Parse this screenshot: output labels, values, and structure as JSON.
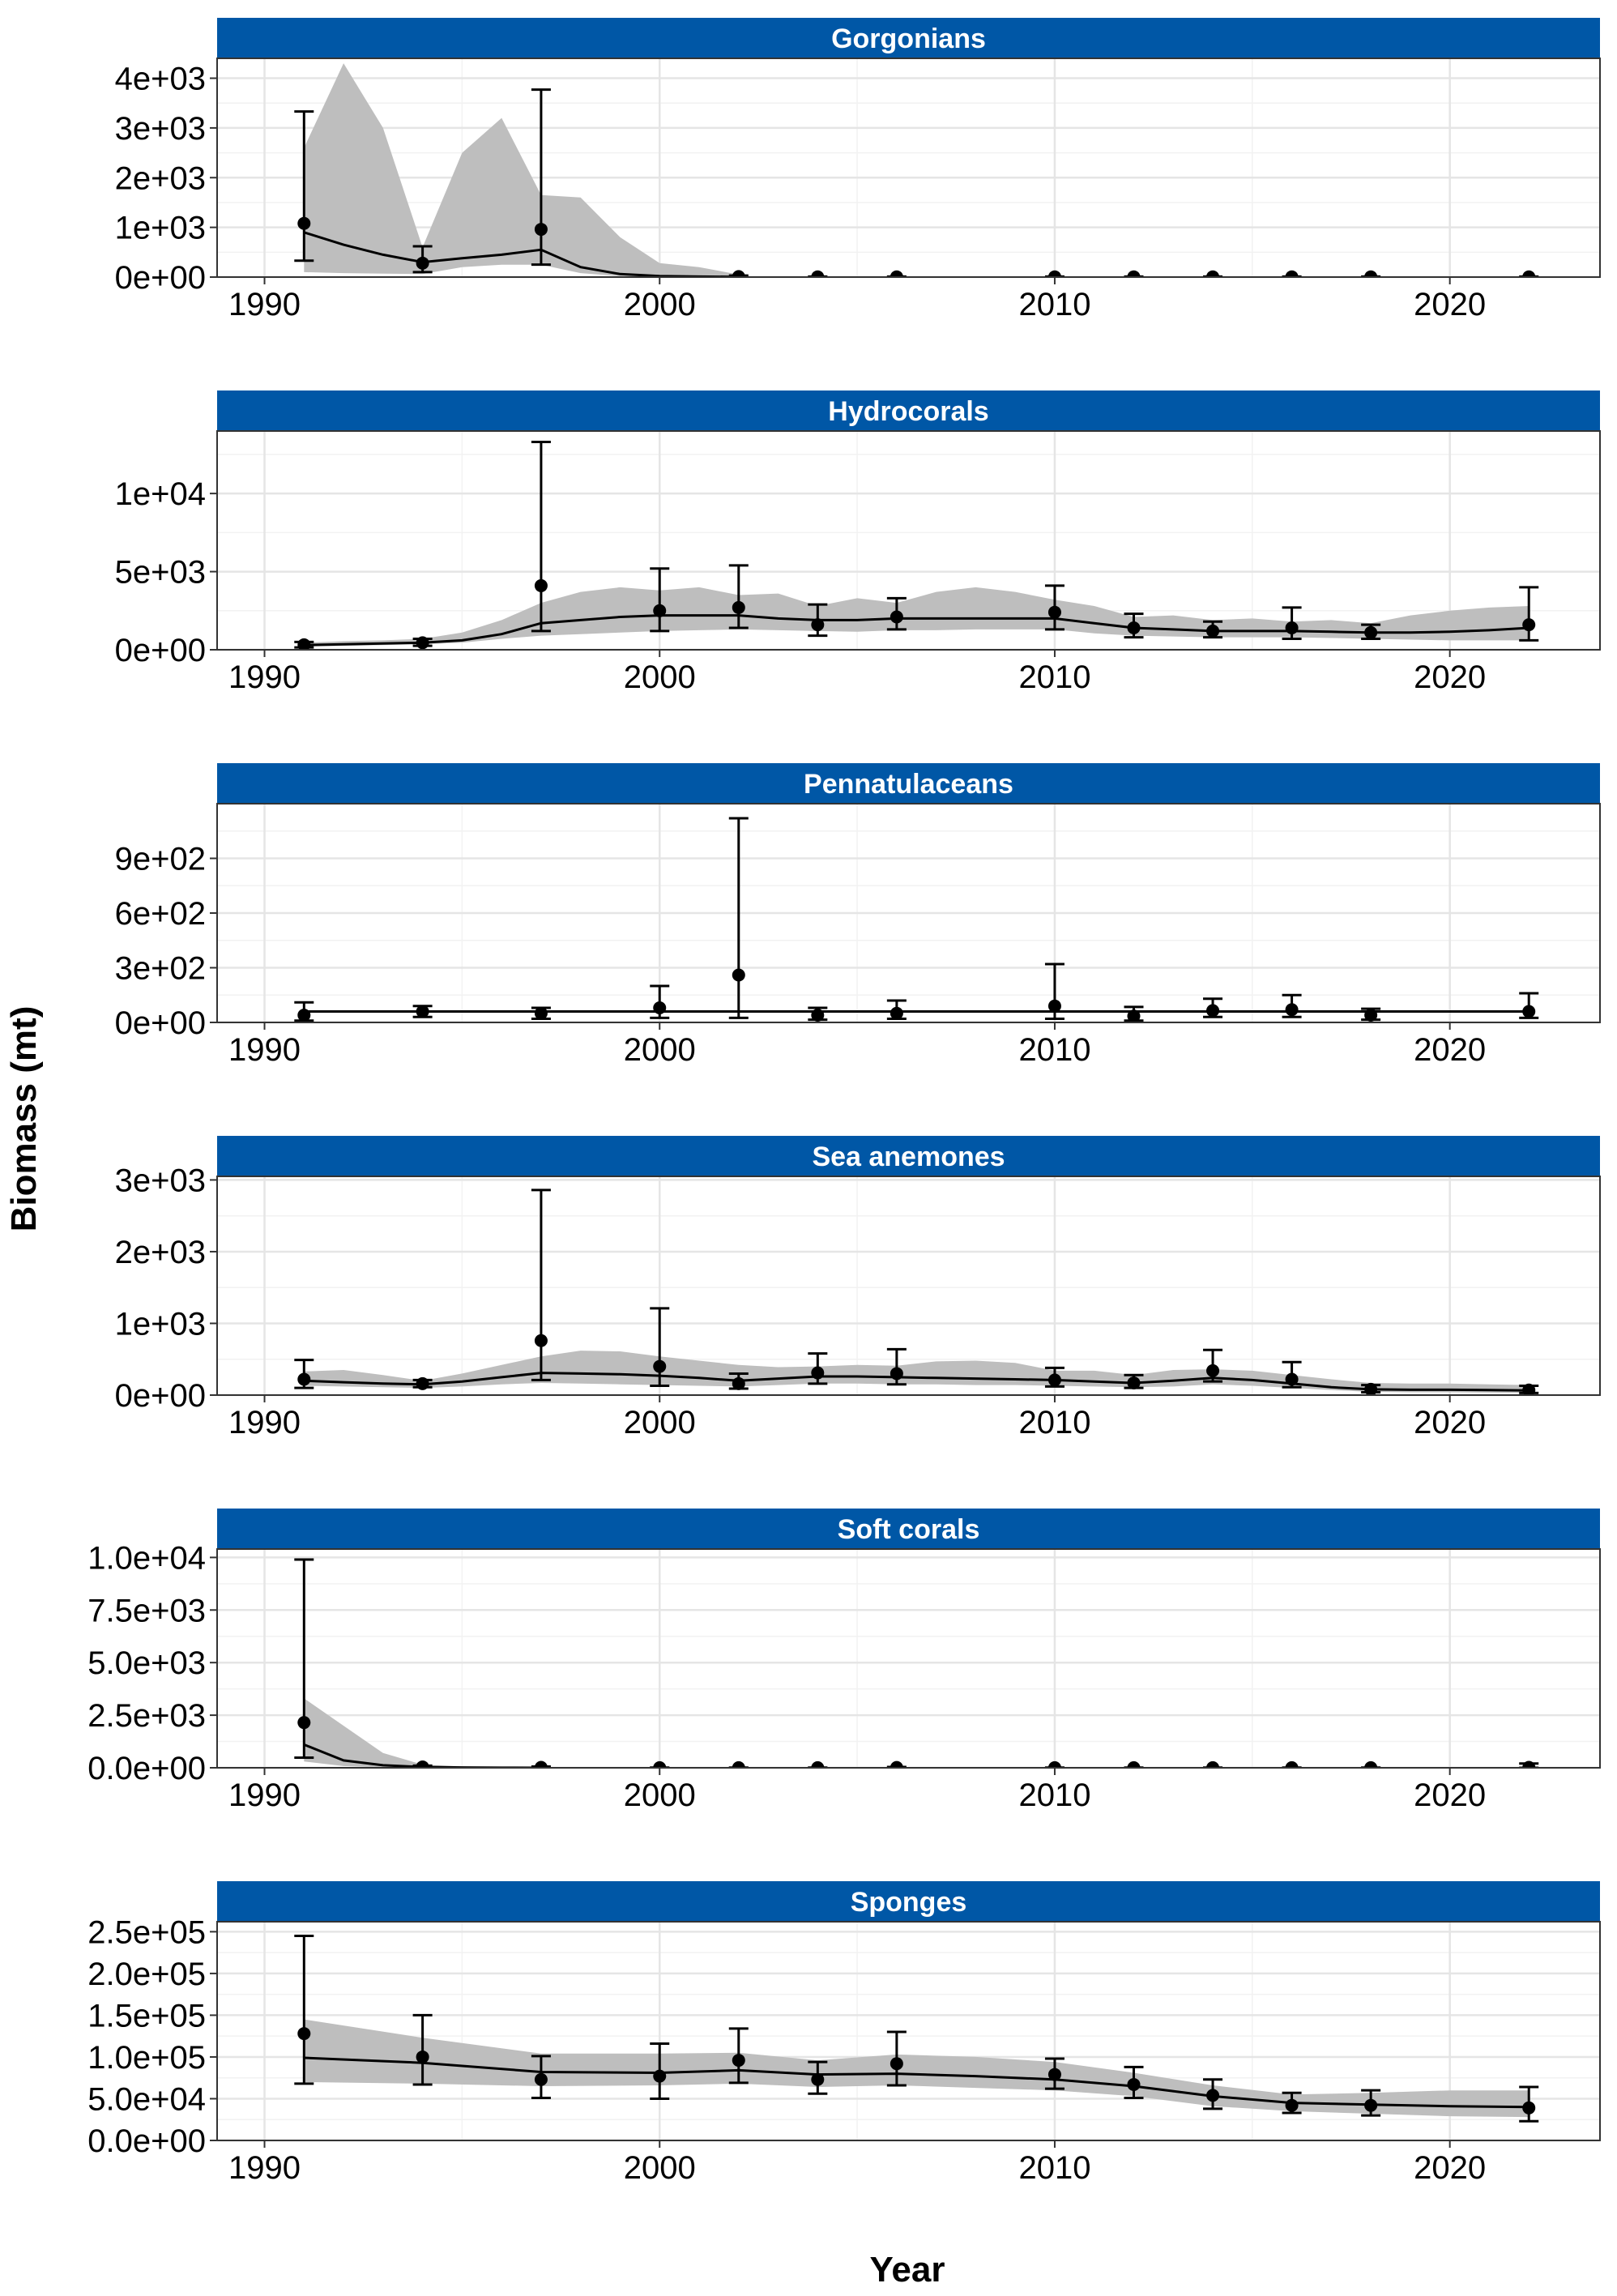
{
  "xlabel": "Year",
  "ylabel": "Biomass (mt)",
  "colors": {
    "strip": "#0057A6",
    "band": "#BEBEBE",
    "line": "#000000",
    "grid_major": "#E5E5E5",
    "grid_minor": "#F2F2F2"
  },
  "chart_data": [
    {
      "type": "line",
      "title": "Gorgonians",
      "xlim": [
        1988.8,
        2023.8
      ],
      "x_ticks": [
        1990,
        2000,
        2010,
        2020
      ],
      "x_tick_labels": [
        "1990",
        "2000",
        "2010",
        "2020"
      ],
      "ylim": [
        0,
        4400
      ],
      "y_ticks": [
        0,
        1000,
        2000,
        3000,
        4000
      ],
      "y_tick_labels": [
        "0e+00",
        "1e+03",
        "2e+03",
        "3e+03",
        "4e+03"
      ],
      "y_minor": [
        500,
        1500,
        2500,
        3500
      ],
      "model": {
        "x": [
          1991,
          1992,
          1993,
          1994,
          1995,
          1996,
          1997,
          1998,
          1999,
          2000,
          2001,
          2002
        ],
        "est": [
          900,
          650,
          450,
          300,
          380,
          450,
          550,
          200,
          60,
          20,
          10,
          5
        ],
        "lo": [
          100,
          80,
          70,
          60,
          200,
          250,
          250,
          80,
          20,
          5,
          2,
          0
        ],
        "hi": [
          2600,
          4300,
          3000,
          600,
          2500,
          3200,
          1650,
          1600,
          800,
          280,
          200,
          50
        ]
      },
      "points": {
        "x": [
          1991,
          1994,
          1997,
          2002,
          2004,
          2006,
          2010,
          2012,
          2014,
          2016,
          2018,
          2022
        ],
        "y": [
          1080,
          280,
          960,
          10,
          5,
          5,
          5,
          5,
          5,
          5,
          5,
          5
        ],
        "lo": [
          330,
          100,
          250,
          2,
          1,
          1,
          1,
          1,
          1,
          1,
          1,
          1
        ],
        "hi": [
          3330,
          620,
          3770,
          30,
          10,
          10,
          10,
          10,
          10,
          10,
          10,
          10
        ]
      }
    },
    {
      "type": "line",
      "title": "Hydrocorals",
      "xlim": [
        1988.8,
        2023.8
      ],
      "x_ticks": [
        1990,
        2000,
        2010,
        2020
      ],
      "x_tick_labels": [
        "1990",
        "2000",
        "2010",
        "2020"
      ],
      "ylim": [
        0,
        14000
      ],
      "y_ticks": [
        0,
        5000,
        10000
      ],
      "y_tick_labels": [
        "0e+00",
        "5e+03",
        "1e+04"
      ],
      "y_minor": [
        2500,
        7500,
        12500
      ],
      "model": {
        "x": [
          1991,
          1992,
          1993,
          1994,
          1995,
          1996,
          1997,
          1998,
          1999,
          2000,
          2001,
          2002,
          2003,
          2004,
          2005,
          2006,
          2007,
          2008,
          2009,
          2010,
          2011,
          2012,
          2013,
          2014,
          2015,
          2016,
          2017,
          2018,
          2019,
          2020,
          2021,
          2022
        ],
        "est": [
          300,
          350,
          400,
          450,
          600,
          1000,
          1700,
          1900,
          2100,
          2200,
          2200,
          2200,
          2000,
          1900,
          1900,
          2000,
          2000,
          2000,
          2000,
          2000,
          1700,
          1400,
          1300,
          1200,
          1200,
          1200,
          1150,
          1100,
          1100,
          1150,
          1250,
          1400
        ],
        "lo": [
          200,
          250,
          300,
          350,
          450,
          700,
          900,
          1000,
          1100,
          1200,
          1250,
          1300,
          1250,
          1200,
          1150,
          1250,
          1250,
          1300,
          1300,
          1300,
          1050,
          900,
          850,
          800,
          800,
          800,
          750,
          700,
          650,
          600,
          600,
          600
        ],
        "hi": [
          450,
          550,
          600,
          700,
          1100,
          1900,
          3000,
          3700,
          4000,
          3800,
          4000,
          3500,
          3600,
          2800,
          3300,
          3000,
          3700,
          4000,
          3700,
          3200,
          2800,
          2100,
          2200,
          1900,
          2000,
          1800,
          1900,
          1700,
          2200,
          2500,
          2700,
          2800
        ]
      },
      "points": {
        "x": [
          1991,
          1994,
          1997,
          2000,
          2002,
          2004,
          2006,
          2010,
          2012,
          2014,
          2016,
          2018,
          2022
        ],
        "y": [
          320,
          450,
          4100,
          2500,
          2700,
          1600,
          2100,
          2400,
          1400,
          1200,
          1400,
          1100,
          1600
        ],
        "lo": [
          150,
          250,
          1200,
          1200,
          1400,
          900,
          1300,
          1300,
          800,
          800,
          700,
          700,
          600
        ],
        "hi": [
          500,
          700,
          13300,
          5200,
          5400,
          2900,
          3300,
          4100,
          2300,
          1800,
          2700,
          1600,
          4000
        ]
      }
    },
    {
      "type": "line",
      "title": "Pennatulaceans",
      "xlim": [
        1988.8,
        2023.8
      ],
      "x_ticks": [
        1990,
        2000,
        2010,
        2020
      ],
      "x_tick_labels": [
        "1990",
        "2000",
        "2010",
        "2020"
      ],
      "ylim": [
        0,
        1200
      ],
      "y_ticks": [
        0,
        300,
        600,
        900
      ],
      "y_tick_labels": [
        "0e+00",
        "3e+02",
        "6e+02",
        "9e+02"
      ],
      "y_minor": [
        150,
        450,
        750,
        1050
      ],
      "model": {
        "x": [
          1991,
          2000,
          2010,
          2022
        ],
        "est": [
          60,
          60,
          60,
          60
        ],
        "lo": [
          55,
          55,
          55,
          55
        ],
        "hi": [
          65,
          65,
          65,
          65
        ]
      },
      "points": {
        "x": [
          1991,
          1994,
          1997,
          2000,
          2002,
          2004,
          2006,
          2010,
          2012,
          2014,
          2016,
          2018,
          2022
        ],
        "y": [
          40,
          60,
          50,
          80,
          260,
          40,
          50,
          90,
          35,
          65,
          70,
          40,
          60
        ],
        "lo": [
          10,
          30,
          20,
          25,
          25,
          15,
          20,
          20,
          10,
          30,
          30,
          15,
          25
        ],
        "hi": [
          110,
          90,
          80,
          200,
          1120,
          80,
          120,
          320,
          85,
          130,
          150,
          75,
          160
        ]
      }
    },
    {
      "type": "line",
      "title": "Sea anemones",
      "xlim": [
        1988.8,
        2023.8
      ],
      "x_ticks": [
        1990,
        2000,
        2010,
        2020
      ],
      "x_tick_labels": [
        "1990",
        "2000",
        "2010",
        "2020"
      ],
      "ylim": [
        0,
        3050
      ],
      "y_ticks": [
        0,
        1000,
        2000,
        3000
      ],
      "y_tick_labels": [
        "0e+00",
        "1e+03",
        "2e+03",
        "3e+03"
      ],
      "y_minor": [
        500,
        1500,
        2500
      ],
      "model": {
        "x": [
          1991,
          1992,
          1993,
          1994,
          1995,
          1996,
          1997,
          1998,
          1999,
          2000,
          2001,
          2002,
          2003,
          2004,
          2005,
          2006,
          2007,
          2008,
          2009,
          2010,
          2011,
          2012,
          2013,
          2014,
          2015,
          2016,
          2017,
          2018,
          2019,
          2020,
          2021,
          2022
        ],
        "est": [
          200,
          180,
          160,
          150,
          190,
          250,
          310,
          300,
          290,
          270,
          240,
          200,
          230,
          260,
          260,
          250,
          240,
          230,
          220,
          210,
          190,
          170,
          200,
          240,
          210,
          160,
          110,
          80,
          75,
          75,
          70,
          65
        ],
        "lo": [
          130,
          120,
          110,
          100,
          120,
          150,
          170,
          160,
          150,
          140,
          130,
          120,
          140,
          160,
          160,
          150,
          150,
          140,
          140,
          130,
          120,
          110,
          120,
          150,
          130,
          100,
          70,
          45,
          40,
          40,
          35,
          30
        ],
        "hi": [
          330,
          350,
          280,
          200,
          300,
          420,
          540,
          620,
          610,
          540,
          480,
          420,
          390,
          400,
          420,
          410,
          470,
          480,
          450,
          340,
          340,
          280,
          350,
          360,
          340,
          280,
          220,
          170,
          160,
          160,
          150,
          140
        ]
      },
      "points": {
        "x": [
          1991,
          1994,
          1997,
          2000,
          2002,
          2004,
          2006,
          2010,
          2012,
          2014,
          2016,
          2018,
          2022
        ],
        "y": [
          220,
          160,
          760,
          400,
          160,
          310,
          300,
          210,
          170,
          340,
          220,
          80,
          70
        ],
        "lo": [
          100,
          110,
          210,
          130,
          90,
          160,
          150,
          120,
          100,
          190,
          110,
          40,
          30
        ],
        "hi": [
          490,
          210,
          2860,
          1210,
          300,
          580,
          640,
          380,
          280,
          630,
          460,
          140,
          130
        ]
      }
    },
    {
      "type": "line",
      "title": "Soft corals",
      "xlim": [
        1988.8,
        2023.8
      ],
      "x_ticks": [
        1990,
        2000,
        2010,
        2020
      ],
      "x_tick_labels": [
        "1990",
        "2000",
        "2010",
        "2020"
      ],
      "ylim": [
        0,
        10400
      ],
      "y_ticks": [
        0,
        2500,
        5000,
        7500,
        10000
      ],
      "y_tick_labels": [
        "0.0e+00",
        "2.5e+03",
        "5.0e+03",
        "7.5e+03",
        "1.0e+04"
      ],
      "y_minor": [
        1250,
        3750,
        6250,
        8750
      ],
      "model": {
        "x": [
          1991,
          1992,
          1993,
          1994,
          1995,
          1996,
          1997
        ],
        "est": [
          1100,
          350,
          120,
          40,
          15,
          5,
          0
        ],
        "lo": [
          300,
          80,
          20,
          5,
          0,
          0,
          0
        ],
        "hi": [
          3300,
          2000,
          700,
          150,
          60,
          20,
          5
        ]
      },
      "points": {
        "x": [
          1991,
          1994,
          1997,
          2000,
          2002,
          2004,
          2006,
          2010,
          2012,
          2014,
          2016,
          2018,
          2022
        ],
        "y": [
          2150,
          40,
          20,
          5,
          5,
          5,
          15,
          5,
          5,
          5,
          5,
          5,
          20
        ],
        "lo": [
          480,
          5,
          2,
          0,
          0,
          0,
          2,
          0,
          0,
          0,
          0,
          0,
          2
        ],
        "hi": [
          9900,
          100,
          60,
          10,
          10,
          10,
          40,
          10,
          10,
          10,
          10,
          10,
          200
        ]
      }
    },
    {
      "type": "line",
      "title": "Sponges",
      "xlim": [
        1988.8,
        2023.8
      ],
      "x_ticks": [
        1990,
        2000,
        2010,
        2020
      ],
      "x_tick_labels": [
        "1990",
        "2000",
        "2010",
        "2020"
      ],
      "ylim": [
        0,
        262000
      ],
      "y_ticks": [
        0,
        50000,
        100000,
        150000,
        200000,
        250000
      ],
      "y_tick_labels": [
        "0.0e+00",
        "5.0e+04",
        "1.0e+05",
        "1.5e+05",
        "2.0e+05",
        "2.5e+05"
      ],
      "y_minor": [
        25000,
        75000,
        125000,
        175000,
        225000
      ],
      "model": {
        "x": [
          1991,
          1994,
          1997,
          2000,
          2002,
          2004,
          2006,
          2008,
          2010,
          2012,
          2014,
          2016,
          2018,
          2020,
          2022
        ],
        "est": [
          99000,
          93000,
          82000,
          81000,
          84000,
          79000,
          80000,
          77000,
          73000,
          65000,
          53000,
          45000,
          43000,
          41000,
          40000
        ],
        "lo": [
          70000,
          68000,
          65000,
          66000,
          68000,
          64000,
          66000,
          63000,
          60000,
          53000,
          41000,
          35000,
          32000,
          29000,
          28000
        ],
        "hi": [
          145000,
          123000,
          104000,
          104000,
          105000,
          96000,
          103000,
          100000,
          94000,
          81000,
          66000,
          55000,
          57000,
          60000,
          60000
        ]
      },
      "points": {
        "x": [
          1991,
          1994,
          1997,
          2000,
          2002,
          2004,
          2006,
          2010,
          2012,
          2014,
          2016,
          2018,
          2022
        ],
        "y": [
          128000,
          100000,
          73000,
          77000,
          96000,
          73000,
          92000,
          79000,
          67000,
          54000,
          42000,
          42000,
          39000
        ],
        "lo": [
          68000,
          67000,
          51000,
          50000,
          69000,
          56000,
          66000,
          62000,
          51000,
          38000,
          33000,
          30000,
          23000
        ],
        "hi": [
          245000,
          150000,
          101000,
          116000,
          134000,
          94000,
          130000,
          98000,
          88000,
          73000,
          57000,
          60000,
          64000
        ]
      }
    }
  ]
}
